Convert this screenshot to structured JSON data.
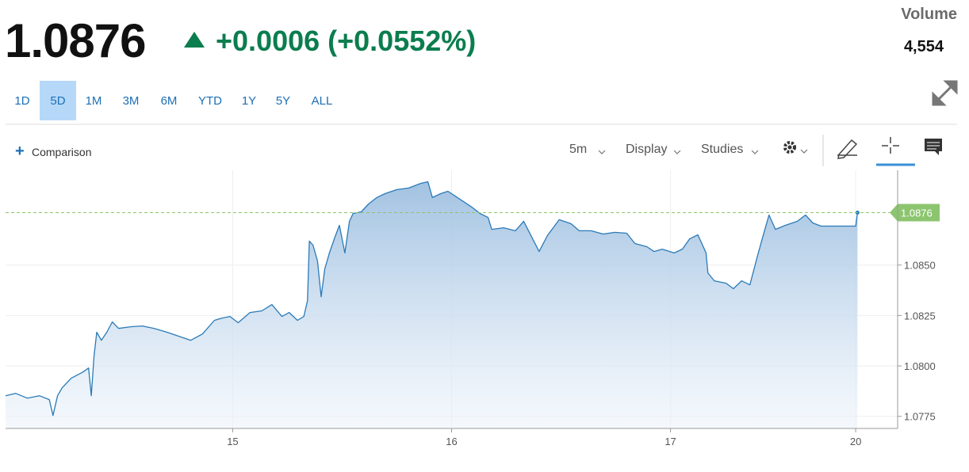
{
  "header": {
    "price": "1.0876",
    "change": "+0.0006 (+0.0552%)",
    "volume_label": "Volume",
    "volume": "4,554"
  },
  "ranges": [
    "1D",
    "5D",
    "1M",
    "3M",
    "6M",
    "YTD",
    "1Y",
    "5Y",
    "ALL"
  ],
  "selected_range": 1,
  "toolbar": {
    "comparison": "Comparison",
    "interval": "5m",
    "display": "Display",
    "studies": "Studies"
  },
  "chart_data": {
    "type": "area",
    "color": "#2a7ab8",
    "x": [
      0.0,
      1.1,
      2.4,
      3.7,
      4.8,
      5.2,
      5.7,
      6.2,
      7.2,
      8.5,
      9.1,
      9.4,
      9.7,
      10.0,
      10.5,
      11.1,
      11.7,
      12.4,
      13.7,
      15.0,
      16.3,
      17.7,
      19.0,
      20.3,
      21.6,
      22.9,
      23.7,
      24.6,
      25.5,
      26.8,
      28.1,
      29.2,
      30.3,
      31.1,
      32.0,
      32.7,
      33.1,
      33.3,
      33.7,
      34.2,
      34.6,
      35.0,
      35.5,
      36.1,
      36.6,
      37.2,
      37.7,
      38.1,
      39.0,
      39.8,
      40.7,
      41.6,
      42.9,
      44.2,
      45.5,
      46.3,
      46.8,
      47.7,
      48.5,
      49.8,
      51.1,
      52.0,
      52.9,
      53.3,
      54.6,
      55.9,
      56.8,
      57.7,
      58.5,
      59.4,
      60.7,
      62.0,
      62.9,
      64.2,
      65.5,
      66.8,
      68.1,
      69.0,
      70.3,
      71.1,
      72.0,
      73.3,
      74.2,
      75.0,
      75.9,
      76.8,
      77.0,
      77.7,
      79.0,
      79.8,
      80.7,
      81.6,
      82.4,
      83.0,
      83.7,
      84.4,
      85.5,
      86.8,
      87.7,
      88.5,
      89.4,
      93.2,
      93.4
    ],
    "values": [
      1.07852,
      1.07864,
      1.0784,
      1.07852,
      1.07833,
      1.07754,
      1.07852,
      1.07891,
      1.07939,
      1.0797,
      1.0799,
      1.07852,
      1.08049,
      1.08167,
      1.08127,
      1.08167,
      1.08218,
      1.08186,
      1.08194,
      1.08198,
      1.08186,
      1.08167,
      1.08147,
      1.08127,
      1.08159,
      1.08226,
      1.08237,
      1.08245,
      1.08214,
      1.08265,
      1.08273,
      1.08304,
      1.08245,
      1.08265,
      1.08226,
      1.08245,
      1.08324,
      1.08619,
      1.08599,
      1.0852,
      1.08343,
      1.08481,
      1.0856,
      1.08638,
      1.08697,
      1.0856,
      1.08717,
      1.08756,
      1.08764,
      1.08803,
      1.08835,
      1.08854,
      1.08874,
      1.08882,
      1.08905,
      1.08913,
      1.08835,
      1.08854,
      1.08866,
      1.08827,
      1.08788,
      1.08756,
      1.08736,
      1.08677,
      1.08685,
      1.0867,
      1.08717,
      1.08638,
      1.08567,
      1.08646,
      1.08725,
      1.08705,
      1.0867,
      1.0867,
      1.08654,
      1.08662,
      1.08658,
      1.08607,
      1.08591,
      1.08567,
      1.08579,
      1.0856,
      1.08579,
      1.0863,
      1.0865,
      1.0856,
      1.08461,
      1.08422,
      1.0841,
      1.08383,
      1.08422,
      1.08402,
      1.0854,
      1.08638,
      1.08748,
      1.08677,
      1.08697,
      1.08717,
      1.08748,
      1.08709,
      1.08693,
      1.08693,
      1.0876
    ],
    "last_value": 1.0876,
    "last_color": "#8cc56f",
    "xlim": [
      0,
      97.8
    ],
    "xticks": [
      {
        "value": 24.9,
        "label": "15"
      },
      {
        "value": 48.9,
        "label": "16"
      },
      {
        "value": 72.9,
        "label": "17"
      },
      {
        "value": 93.2,
        "label": "20"
      }
    ],
    "ylim": [
      1.0769,
      1.0897
    ],
    "yticks": [
      {
        "value": 1.0775,
        "label": "1.0775"
      },
      {
        "value": 1.08,
        "label": "1.0800"
      },
      {
        "value": 1.0825,
        "label": "1.0825"
      },
      {
        "value": 1.085,
        "label": "1.0850"
      }
    ],
    "grid": true
  }
}
